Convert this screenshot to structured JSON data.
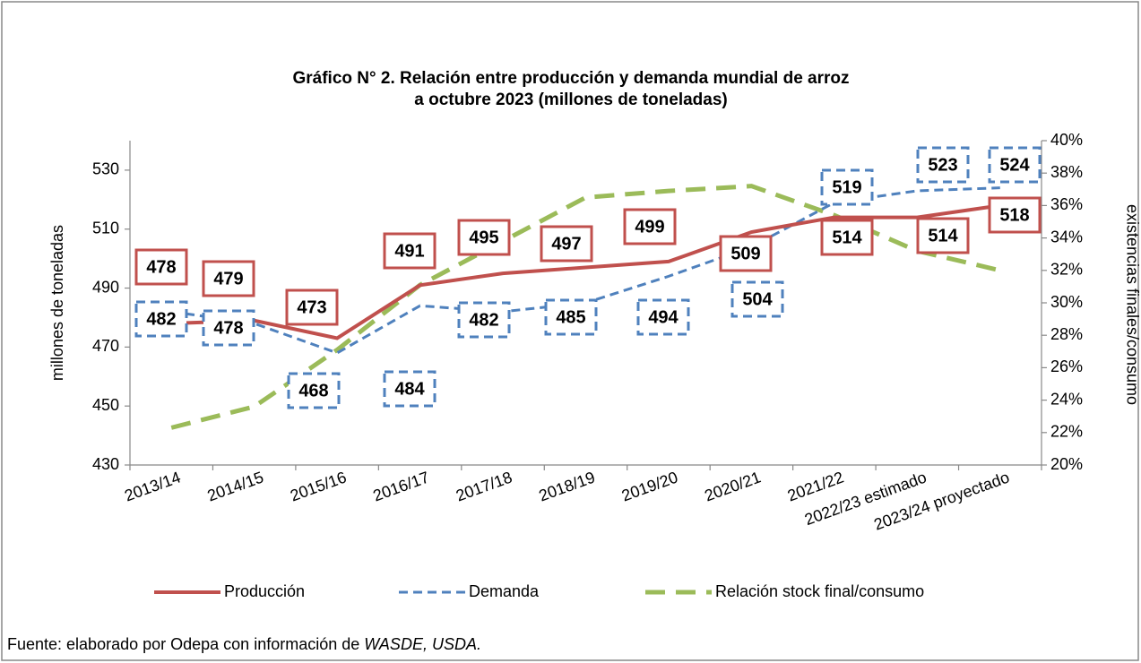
{
  "chart_data": {
    "type": "line",
    "title": [
      "Gráfico N° 2. Relación entre producción y demanda mundial de arroz",
      "a octubre 2023 (millones de toneladas)"
    ],
    "ylabel": "millones de toneladas",
    "y2label": "existencias finales/consumo",
    "categories": [
      "2013/14",
      "2014/15",
      "2015/16",
      "2016/17",
      "2017/18",
      "2018/19",
      "2019/20",
      "2020/21",
      "2021/22",
      "2022/23 estimado",
      "2023/24 proyectado"
    ],
    "series": [
      {
        "name": "Producción",
        "color": "#c0504d",
        "values": [
          478,
          479,
          473,
          491,
          495,
          497,
          499,
          509,
          514,
          514,
          518
        ]
      },
      {
        "name": "Demanda",
        "color": "#4f81bd",
        "values": [
          482,
          478,
          468,
          484,
          482,
          485,
          494,
          504,
          519,
          523,
          524
        ]
      },
      {
        "name": "Relación stock final/consumo",
        "color": "#9bbb59",
        "axis": "y2",
        "values": [
          22.3,
          23.6,
          27.1,
          31.1,
          33.8,
          36.5,
          36.9,
          37.2,
          35.4,
          33.2,
          32.0
        ]
      }
    ],
    "ylim": [
      430,
      540
    ],
    "yticks": [
      430,
      450,
      470,
      490,
      510,
      530
    ],
    "y2lim": [
      20,
      40
    ],
    "y2ticks": [
      {
        "value": 20,
        "label": "20%"
      },
      {
        "value": 22,
        "label": "22%"
      },
      {
        "value": 24,
        "label": "24%"
      },
      {
        "value": 26,
        "label": "26%"
      },
      {
        "value": 28,
        "label": "28%"
      },
      {
        "value": 30,
        "label": "30%"
      },
      {
        "value": 32,
        "label": "32%"
      },
      {
        "value": 34,
        "label": "34%"
      },
      {
        "value": 36,
        "label": "36%"
      },
      {
        "value": 38,
        "label": "38%"
      },
      {
        "value": 40,
        "label": "40%"
      }
    ],
    "legend": "bottom",
    "source": "Fuente: elaborado por Odepa con información de ",
    "source_italic": "WASDE, USDA."
  }
}
